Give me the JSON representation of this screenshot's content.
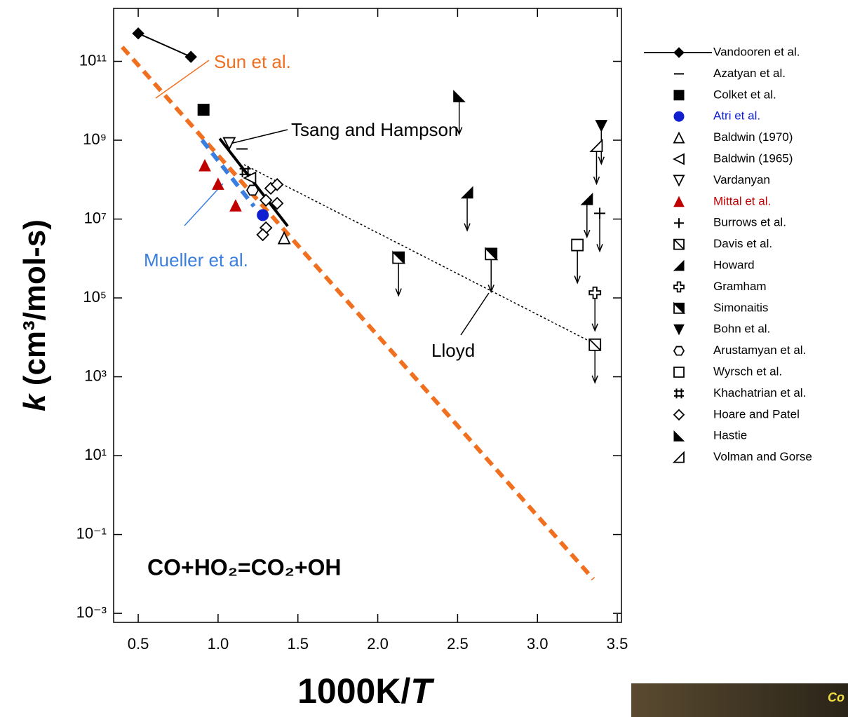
{
  "chart_data": {
    "type": "scatter",
    "x_label_prefix": "1000K/",
    "x_label_var": "T",
    "y_label_var": "k",
    "y_label": " (cm³/mol-s)",
    "reaction_label": "CO+HO₂=CO₂+OH",
    "log_y": true,
    "xlim": [
      0.346,
      3.526
    ],
    "ylim": [
      0.00059,
      2200000000000
    ],
    "xticks": [
      0.5,
      {
        "value": 1,
        "label": "1.0"
      },
      1.5,
      {
        "value": 2,
        "label": "2.0"
      },
      2.5,
      {
        "value": 3,
        "label": "3.0"
      },
      3.5
    ],
    "yticks": [
      {
        "value": 100000000000,
        "label": "10¹¹"
      },
      {
        "value": 1000000000,
        "label": "10⁹"
      },
      {
        "value": 10000000,
        "label": "10⁷"
      },
      {
        "value": 100000,
        "label": "10⁵"
      },
      {
        "value": 1000,
        "label": "10³"
      },
      {
        "value": 10,
        "label": "10¹"
      },
      {
        "value": 0.1,
        "label": "10⁻¹"
      },
      {
        "value": 0.001,
        "label": "10⁻³"
      }
    ],
    "fits": [
      {
        "name": "Sun et al.",
        "color": "#f07020",
        "dash": true,
        "x": [
          0.4,
          3.35
        ],
        "values": [
          230000000000,
          0.0074
        ]
      },
      {
        "name": "Mueller et al.",
        "color": "#3a7fe0",
        "dash": true,
        "x": [
          0.9,
          1.225
        ],
        "values": [
          1000000000,
          21000000
        ]
      },
      {
        "name": "Tsang and Hampson",
        "color": "#000000",
        "dash": false,
        "x": [
          1.01,
          1.436
        ],
        "values": [
          1100000000,
          6600000
        ]
      },
      {
        "name": "Lloyd",
        "color": "#000000",
        "dash": false,
        "dotted": true,
        "x": [
          1.163,
          3.37
        ],
        "values": [
          240000000,
          6500
        ]
      }
    ],
    "series": [
      {
        "name": "Vandooren et al.",
        "marker": "diamond",
        "color": "#000000",
        "line": true,
        "x": [
          0.5,
          0.83
        ],
        "values": [
          510000000000,
          130000000000
        ]
      },
      {
        "name": "Azatyan et al.",
        "marker": "dash",
        "color": "#000000",
        "x": [
          1.15
        ],
        "values": [
          600000000
        ]
      },
      {
        "name": "Colket et al.",
        "marker": "square",
        "color": "#000000",
        "x": [
          0.909
        ],
        "values": [
          5900000000
        ]
      },
      {
        "name": "Atri et al.",
        "marker": "circle",
        "color": "#1020d0",
        "text_color": "#1020d0",
        "x": [
          1.28
        ],
        "values": [
          12600000
        ]
      },
      {
        "name": "Baldwin (1970)",
        "marker": "tri-up-open",
        "color": "#000000",
        "x": [
          1.414
        ],
        "values": [
          3300000
        ]
      },
      {
        "name": "Baldwin (1965)",
        "marker": "tri-left-open",
        "color": "#000000",
        "x": [
          1.2
        ],
        "values": [
          110000000
        ]
      },
      {
        "name": "Vardanyan",
        "marker": "tri-down-open",
        "color": "#000000",
        "x": [
          1.07
        ],
        "values": [
          830000000
        ]
      },
      {
        "name": "Mittal et al.",
        "marker": "tri-up",
        "color": "#c00000",
        "text_color": "#c00000",
        "x": [
          0.917,
          1.0,
          1.11
        ],
        "values": [
          230000000,
          78000000,
          22000000
        ]
      },
      {
        "name": "Burrows et al.",
        "marker": "plus",
        "color": "#000000",
        "arrow": true,
        "x": [
          3.39
        ],
        "values": [
          14000000
        ]
      },
      {
        "name": "Davis et al.",
        "marker": "square-x",
        "color": "#000000",
        "arrow": true,
        "x": [
          3.36
        ],
        "values": [
          6500
        ]
      },
      {
        "name": "Howard",
        "marker": "half-tri",
        "color": "#000000",
        "arrow": true,
        "x": [
          2.56,
          3.31
        ],
        "values": [
          47000000,
          32000000
        ]
      },
      {
        "name": "Gramham",
        "marker": "cross-open",
        "color": "#000000",
        "arrow": true,
        "x": [
          3.36
        ],
        "values": [
          135000
        ]
      },
      {
        "name": "Simonaitis",
        "marker": "square-half",
        "color": "#000000",
        "arrow": true,
        "x": [
          2.13,
          2.71
        ],
        "values": [
          1050000,
          1300000
        ]
      },
      {
        "name": "Bohn et al.",
        "marker": "tri-down",
        "color": "#000000",
        "arrow": true,
        "x": [
          3.4
        ],
        "values": [
          2300000000
        ]
      },
      {
        "name": "Arustamyan et al.",
        "marker": "hexagon",
        "color": "#000000",
        "x": [
          1.216
        ],
        "values": [
          54000000
        ]
      },
      {
        "name": "Wyrsch et al.",
        "marker": "square-open",
        "color": "#000000",
        "arrow": true,
        "x": [
          3.25
        ],
        "values": [
          2200000
        ]
      },
      {
        "name": "Khachatrian et al.",
        "marker": "hash",
        "color": "#000000",
        "x": [
          1.17
        ],
        "values": [
          160000000
        ]
      },
      {
        "name": "Hoare and Patel",
        "marker": "diamond-open",
        "color": "#000000",
        "x": [
          1.3,
          1.33,
          1.37,
          1.37,
          1.3,
          1.28
        ],
        "values": [
          30000000,
          60000000,
          75000000,
          25000000,
          6000000,
          4000000
        ]
      },
      {
        "name": "Hastie",
        "marker": "hastie",
        "color": "#000000",
        "arrow": true,
        "x": [
          2.51
        ],
        "values": [
          13000000000
        ]
      },
      {
        "name": "Volman and Gorse",
        "marker": "volman",
        "color": "#000000",
        "arrow": true,
        "x": [
          3.37
        ],
        "values": [
          720000000
        ]
      }
    ]
  },
  "corner_fragment_text": "Co"
}
